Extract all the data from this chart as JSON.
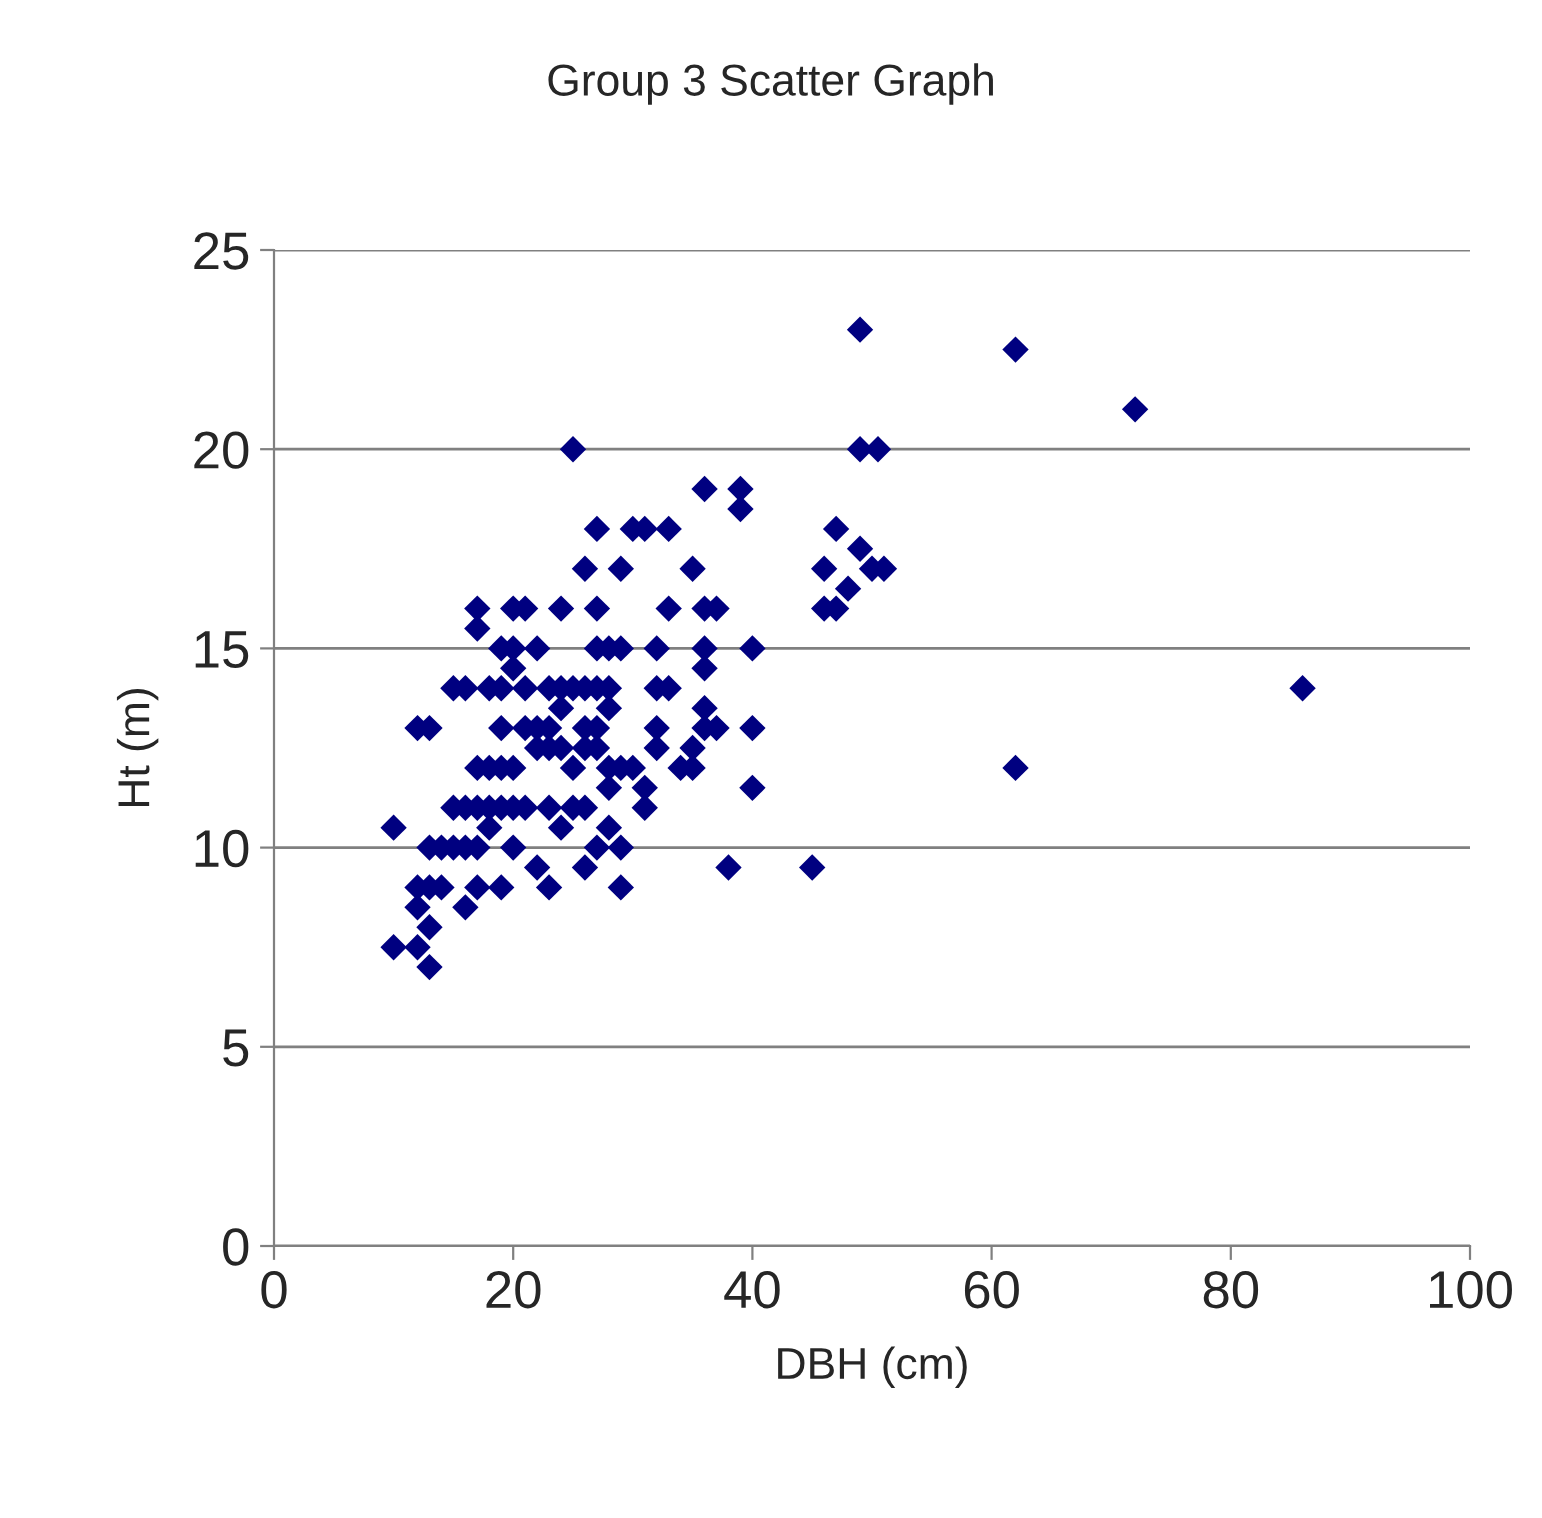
{
  "chart_data": {
    "type": "scatter",
    "title": "Group 3 Scatter Graph",
    "xlabel": "DBH (cm)",
    "ylabel": "Ht (m)",
    "xlim": [
      0,
      100
    ],
    "xticks": [
      0,
      20,
      40,
      60,
      80,
      100
    ],
    "ylim": [
      0,
      25
    ],
    "yticks": [
      0,
      5,
      10,
      15,
      20,
      25
    ],
    "grid": "y",
    "marker": "diamond",
    "series": [
      {
        "color": "#000080",
        "x": [
          10,
          10,
          12,
          12,
          13,
          12,
          13,
          13,
          14,
          12,
          13,
          13,
          14,
          15,
          15,
          16,
          15,
          16,
          16,
          17,
          17,
          16,
          17,
          17,
          17,
          17,
          18,
          18,
          18,
          18,
          19,
          19,
          19,
          19,
          19,
          19,
          20,
          20,
          20,
          20,
          20,
          20,
          21,
          21,
          21,
          21,
          22,
          22,
          22,
          22,
          23,
          23,
          23,
          23,
          23,
          24,
          24,
          24,
          24,
          24,
          25,
          25,
          25,
          25,
          26,
          26,
          26,
          26,
          26,
          26,
          27,
          27,
          27,
          27,
          27,
          27,
          27,
          28,
          28,
          28,
          28,
          28,
          28,
          29,
          29,
          29,
          29,
          29,
          30,
          30,
          31,
          31,
          31,
          32,
          32,
          32,
          32,
          33,
          33,
          33,
          34,
          35,
          35,
          35,
          36,
          36,
          36,
          36,
          36,
          36,
          37,
          37,
          38,
          39,
          39,
          40,
          40,
          40,
          45,
          46,
          46,
          47,
          47,
          48,
          49,
          49,
          49,
          50,
          50.5,
          51,
          62,
          62,
          72,
          86
        ],
        "values": [
          10.5,
          7.5,
          7.5,
          8.5,
          7,
          9,
          8,
          9,
          9,
          13,
          13,
          10,
          10,
          10,
          11,
          11,
          14,
          14,
          8.5,
          9,
          10,
          10,
          16,
          15.5,
          12,
          11,
          11,
          10.5,
          14,
          12,
          12,
          15,
          14,
          13,
          11,
          9,
          16,
          15,
          14.5,
          12,
          11,
          10,
          16,
          14,
          13,
          11,
          15,
          13,
          12.5,
          9.5,
          14,
          13,
          12.5,
          11,
          9,
          16,
          14,
          13.5,
          12.5,
          10.5,
          20,
          14,
          12,
          11,
          17,
          14,
          13,
          12.5,
          11,
          9.5,
          18,
          16,
          15,
          14,
          13,
          12.5,
          10,
          14,
          13.5,
          12,
          11.5,
          15,
          10.5,
          17,
          15,
          12,
          10,
          9,
          18,
          12,
          18,
          11.5,
          11,
          15,
          14,
          13,
          12.5,
          18,
          16,
          14,
          12,
          17,
          12.5,
          12,
          19,
          16,
          15,
          14.5,
          13.5,
          13,
          16,
          13,
          9.5,
          19,
          18.5,
          15,
          13,
          11.5,
          9.5,
          17,
          16,
          18,
          16,
          16.5,
          23,
          17.5,
          20,
          17,
          20,
          17,
          22.5,
          12,
          21,
          14
        ]
      }
    ]
  }
}
